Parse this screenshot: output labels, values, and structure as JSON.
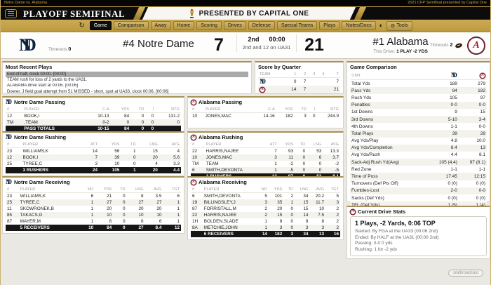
{
  "colors": {
    "gold": "#bd9a3e",
    "black": "#0c0c0c",
    "navy": "#0c2340",
    "crimson": "#9e1b32"
  },
  "meta_bar": {
    "left": "Notre Dame vs. Alabama",
    "right": "2021 CFP Semifinal presented by Capital One"
  },
  "header": {
    "title": "PLAYOFF SEMIFINAL",
    "presented_by": "PRESENTED BY CAPITAL ONE"
  },
  "nav": {
    "tabs": [
      "Game",
      "Comparison",
      "Away",
      "Home",
      "Scoring",
      "Drives",
      "Defense",
      "Special Teams",
      "Plays",
      "Notes/Docs"
    ],
    "active_tab": "Game",
    "theme_icon": "◐",
    "tools_label": "Tools",
    "refresh_icon": "↻",
    "gear_icon": "⚙"
  },
  "scoreboard": {
    "away": {
      "name": "#4 Notre Dame",
      "score": "7",
      "timeouts_label": "Timeouts",
      "timeouts": "0"
    },
    "home": {
      "name": "#1 Alabama",
      "score": "21",
      "timeouts_label": "Timeouts",
      "timeouts": "2",
      "drive_label": "This Drive:",
      "drive_value": "1 PLAY -2 YDS"
    },
    "clock": {
      "quarter": "2nd",
      "time": "00:00",
      "situation": "2nd and 12 on UA31"
    }
  },
  "panels": {
    "most_recent_plays": {
      "title": "Most Recent Plays",
      "selected_index": 0,
      "plays": [
        "End of half, clock 00:00. [00:00]",
        "TEAM rush for loss of 2 yards to the UA31.",
        "ALABAMA drive start at 00:06. [00:06]",
        "Doerer, J field goal attempt from 51 MISSED - short, spot at UA33, clock 00:06. [00:06]"
      ]
    },
    "score_by_quarter": {
      "title": "Score by Quarter",
      "left_cols": 1,
      "columns": [
        "TEAM",
        "1",
        "2",
        "3",
        "4",
        "T"
      ],
      "rows": [
        [
          "@ND",
          "0",
          "7",
          "",
          "",
          "7"
        ],
        [
          "@UA",
          "14",
          "7",
          "",
          "",
          "21"
        ]
      ]
    },
    "game_comparison": {
      "title": "Game Comparison",
      "left_cols": 1,
      "columns": [
        "STAT",
        "@ND",
        "@UA"
      ],
      "rows": [
        [
          "Total Yds",
          "189",
          "279"
        ],
        [
          "Pass Yds",
          "84",
          "182"
        ],
        [
          "Rush Yds",
          "105",
          "97"
        ],
        [
          "Penalties",
          "0-0",
          "0-0"
        ],
        [
          "1st Downs",
          "9",
          "15"
        ],
        [
          "3rd Downs",
          "5-10",
          "3-4"
        ],
        [
          "4th Downs",
          "1-1",
          "0-0"
        ],
        [
          "Total Plays",
          "39",
          "28"
        ],
        [
          "Avg Yds/Play",
          "4.8",
          "10.0"
        ],
        [
          "Avg Yds/Completion",
          "8.4",
          "13"
        ],
        [
          "Avg Yds/Rush",
          "4.4",
          "8.1"
        ],
        [
          "Sack-Adj Rush Yd(Avg)",
          "105 (4.4)",
          "97 (8.1)"
        ],
        [
          "Red Zone",
          "1-1",
          "1-1"
        ],
        [
          "Time of Poss",
          "17:45",
          "12:15"
        ],
        [
          "Turnovers (Def Pts Off)",
          "0 (0)",
          "0 (0)"
        ],
        [
          "Fumbles-Lost",
          "2-0",
          "0-0"
        ],
        [
          "Sacks (Def Yds)",
          "0 (0)",
          "0 (0)"
        ],
        [
          "TFL (Def Yds)",
          "1 (5)",
          "1 (4)"
        ]
      ]
    },
    "nd_passing": {
      "title": "Notre Dame Passing",
      "logo": "@ND",
      "left_cols": 2,
      "columns": [
        "#",
        "PLAYER",
        "C-A",
        "YDS",
        "TD",
        "I",
        "RTG"
      ],
      "rows": [
        [
          "12",
          "BOOK,I",
          "10-13",
          "84",
          "0",
          "0",
          "131.2"
        ],
        [
          "TM",
          ",TEAM",
          "0-2",
          "0",
          "0",
          "0",
          "0"
        ]
      ],
      "totals": [
        "",
        "PASS TOTALS",
        "10-15",
        "84",
        "0",
        "0",
        ""
      ]
    },
    "al_passing": {
      "title": "Alabama Passing",
      "logo": "@UA",
      "left_cols": 2,
      "columns": [
        "#",
        "PLAYER",
        "C-A",
        "YDS",
        "TD",
        "I",
        "RTG"
      ],
      "rows": [
        [
          "10",
          "JONES,MAC",
          "14-16",
          "182",
          "3",
          "0",
          "244.9"
        ]
      ]
    },
    "nd_rushing": {
      "title": "Notre Dame Rushing",
      "logo": "@ND",
      "left_cols": 2,
      "columns": [
        "#",
        "PLAYER",
        "ATT",
        "YDS",
        "TD",
        "LNG",
        "AVG"
      ],
      "rows": [
        [
          "23",
          "WILLIAMS,K",
          "14",
          "56",
          "1",
          "15",
          "4"
        ],
        [
          "12",
          "BOOK,I",
          "7",
          "39",
          "0",
          "20",
          "5.6"
        ],
        [
          "25",
          "TYREE,C",
          "3",
          "10",
          "0",
          "4",
          "3.3"
        ]
      ],
      "totals": [
        "",
        "3 RUSHERS",
        "24",
        "105",
        "1",
        "20",
        "4.4"
      ]
    },
    "al_rushing": {
      "title": "Alabama Rushing",
      "logo": "@UA",
      "left_cols": 2,
      "columns": [
        "#",
        "PLAYER",
        "ATT",
        "YDS",
        "TD",
        "LNG",
        "AVG"
      ],
      "rows": [
        [
          "22",
          "HARRIS,NAJEE",
          "7",
          "93",
          "0",
          "53",
          "13.3"
        ],
        [
          "10",
          "JONES,MAC",
          "3",
          "11",
          "0",
          "6",
          "3.7"
        ],
        [
          "TM",
          "TEAM",
          "1",
          "-2",
          "0",
          "0",
          "-2"
        ],
        [
          "6",
          "SMITH,DEVONTA",
          "1",
          "-5",
          "0",
          "0",
          "-5"
        ]
      ],
      "totals": [
        "",
        "3 RUSHERS",
        "12",
        "97",
        "0",
        "53",
        "8.1"
      ]
    },
    "nd_receiving": {
      "title": "Notre Dame Receiving",
      "logo": "@ND",
      "left_cols": 2,
      "columns": [
        "#",
        "PLAYER",
        "NO",
        "YDS",
        "TD",
        "LNG",
        "AVG",
        "TGT"
      ],
      "rows": [
        [
          "23",
          "WILLIAMS,K",
          "6",
          "21",
          "0",
          "8",
          "3.5",
          "6"
        ],
        [
          "25",
          "TYREE,C",
          "1",
          "27",
          "0",
          "27",
          "27",
          "1"
        ],
        [
          "11",
          "SKOWRONEK,B",
          "1",
          "20",
          "0",
          "20",
          "20",
          "1"
        ],
        [
          "85",
          "TAKACS,G",
          "1",
          "10",
          "0",
          "10",
          "10",
          "1"
        ],
        [
          "87",
          "MAYER,M",
          "1",
          "6",
          "0",
          "6",
          "6",
          "1"
        ]
      ],
      "totals": [
        "",
        "5 RECEIVERS",
        "10",
        "84",
        "0",
        "27",
        "8.4",
        "12"
      ]
    },
    "al_receiving": {
      "title": "Alabama Receiving",
      "logo": "@UA",
      "left_cols": 2,
      "columns": [
        "#",
        "PLAYER",
        "NO",
        "YDS",
        "TD",
        "LNG",
        "AVG",
        "TGT"
      ],
      "rows": [
        [
          "6",
          "SMITH,DEVONTA",
          "5",
          "101",
          "2",
          "34",
          "20.2",
          "5"
        ],
        [
          "19",
          "BILLINGSLEY,J",
          "3",
          "35",
          "1",
          "15",
          "11.7",
          "3"
        ],
        [
          "87",
          "FORRISTALL,M",
          "2",
          "20",
          "0",
          "15",
          "10",
          "2"
        ],
        [
          "22",
          "HARRIS,NAJEE",
          "2",
          "15",
          "0",
          "14",
          "7.5",
          "2"
        ],
        [
          "1H",
          "BOLDEN,SLADE",
          "1",
          "8",
          "0",
          "8",
          "8",
          "2"
        ],
        [
          "8A",
          "METCHIE,JOHN",
          "1",
          "3",
          "0",
          "3",
          "3",
          "2"
        ]
      ],
      "totals": [
        "",
        "6 RECEIVERS",
        "14",
        "182",
        "3",
        "34",
        "13",
        "16"
      ]
    },
    "current_drive": {
      "title": "Current Drive Stats",
      "logo": "@UA",
      "headline": "1 Plays, -2 Yards, 0:06 TOP",
      "lines": [
        "Started: By FGA at the UA33 (00:06 2nd)",
        "Ended: By HALF at the UA31 (00:00 2nd)",
        "Passing: 0-0 0 yds",
        "Rushing: 1 for -2 yds"
      ]
    }
  },
  "watermark": "statbroadcast"
}
